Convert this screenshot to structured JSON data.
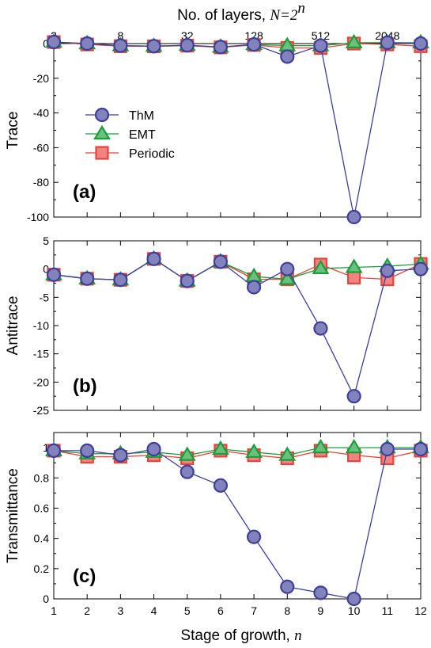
{
  "figure": {
    "top_axis_title": {
      "text": "No. of layers, ",
      "equation": "N=2",
      "exponent": "n"
    },
    "x_axis_title": {
      "text": "Stage of growth, ",
      "var": "n"
    }
  },
  "chart_data": [
    {
      "type": "line",
      "panel_label": "(a)",
      "ylabel": "Trace",
      "xlim": [
        1,
        12
      ],
      "ylim": [
        -100,
        0
      ],
      "yticks": [
        0,
        -20,
        -40,
        -60,
        -80,
        -100
      ],
      "x": [
        1,
        2,
        3,
        4,
        5,
        6,
        7,
        8,
        9,
        10,
        11,
        12
      ],
      "top_ticks": {
        "positions": [
          1,
          3,
          5,
          7,
          9,
          11
        ],
        "labels": [
          "2",
          "8",
          "32",
          "128",
          "512",
          "2048"
        ]
      },
      "legend": {
        "placement": "left",
        "entries": [
          "ThM",
          "EMT",
          "Periodic"
        ]
      },
      "series": [
        {
          "name": "ThM",
          "color": "#3e3f9a",
          "marker": "circle",
          "values": [
            0.9,
            0,
            -1.2,
            -1.5,
            -1,
            -2,
            -0.5,
            -7.5,
            -1.2,
            -100,
            0.5,
            0
          ]
        },
        {
          "name": "EMT",
          "color": "#1b9e3a",
          "marker": "triangle",
          "values": [
            0.9,
            0,
            -1.2,
            -1.5,
            -1,
            -2,
            -0.5,
            -1.2,
            -1.2,
            0.5,
            0.5,
            0.5
          ]
        },
        {
          "name": "Periodic",
          "color": "#e8423c",
          "marker": "square",
          "values": [
            0.9,
            -0.5,
            -1.5,
            -1.6,
            -1.2,
            -2.2,
            -0.8,
            -2.5,
            -2.5,
            0,
            -0.5,
            -1.5
          ]
        }
      ]
    },
    {
      "type": "line",
      "panel_label": "(b)",
      "ylabel": "Antitrace",
      "xlim": [
        1,
        12
      ],
      "ylim": [
        -25,
        5
      ],
      "yticks": [
        5,
        0,
        -5,
        -10,
        -15,
        -20,
        -25
      ],
      "x": [
        1,
        2,
        3,
        4,
        5,
        6,
        7,
        8,
        9,
        10,
        11,
        12
      ],
      "series": [
        {
          "name": "ThM",
          "color": "#3e3f9a",
          "marker": "circle",
          "values": [
            -1,
            -1.7,
            -1.9,
            1.8,
            -2.1,
            1.3,
            -3.2,
            0,
            -10.5,
            -22.5,
            -0.3,
            0
          ]
        },
        {
          "name": "EMT",
          "color": "#1b9e3a",
          "marker": "triangle",
          "values": [
            -1,
            -1.7,
            -1.9,
            1.8,
            -2.1,
            1.3,
            -1.3,
            -1.8,
            0.1,
            0.3,
            0.5,
            0.9
          ]
        },
        {
          "name": "Periodic",
          "color": "#e8423c",
          "marker": "square",
          "values": [
            -1,
            -1.7,
            -1.9,
            1.8,
            -2.1,
            1.3,
            -1.8,
            -1.8,
            0.8,
            -1.5,
            -1.8,
            0.9
          ]
        }
      ]
    },
    {
      "type": "line",
      "panel_label": "(c)",
      "ylabel": "Transmittance",
      "xlim": [
        1,
        12
      ],
      "ylim": [
        0,
        1.1
      ],
      "yticks": [
        0,
        0.2,
        0.4,
        0.6,
        0.8,
        1
      ],
      "ytick_labels": [
        "0",
        "0.2",
        "0.4",
        "0.6",
        "0.8",
        "1"
      ],
      "x": [
        1,
        2,
        3,
        4,
        5,
        6,
        7,
        8,
        9,
        10,
        11,
        12
      ],
      "xticks": [
        1,
        2,
        3,
        4,
        5,
        6,
        7,
        8,
        9,
        10,
        11,
        12
      ],
      "series": [
        {
          "name": "ThM",
          "color": "#3e3f9a",
          "marker": "circle",
          "values": [
            0.98,
            0.98,
            0.95,
            0.99,
            0.84,
            0.75,
            0.41,
            0.08,
            0.04,
            0.0,
            0.99,
            0.99
          ]
        },
        {
          "name": "EMT",
          "color": "#1b9e3a",
          "marker": "triangle",
          "values": [
            0.98,
            0.96,
            0.96,
            0.97,
            0.95,
            0.99,
            0.97,
            0.95,
            1.0,
            1.0,
            1.0,
            1.0
          ]
        },
        {
          "name": "Periodic",
          "color": "#e8423c",
          "marker": "square",
          "values": [
            0.98,
            0.94,
            0.94,
            0.95,
            0.93,
            0.98,
            0.95,
            0.93,
            0.98,
            0.95,
            0.93,
            0.98
          ]
        }
      ]
    }
  ]
}
